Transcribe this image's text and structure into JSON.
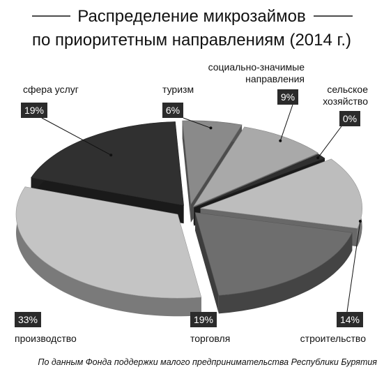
{
  "chart_data": {
    "type": "pie",
    "title_line1": "Распределение микрозаймов",
    "title_line2": "по приоритетным направлениям (2014 г.)",
    "source": "По данным Фонда поддержки малого предпринимательства Республики Бурятия",
    "slices": [
      {
        "label": "туризм",
        "value": 6,
        "value_label": "6%",
        "color": "#8a8a8a"
      },
      {
        "label": "социально-значимые направления",
        "label_lines": [
          "социально-значимые",
          "направления"
        ],
        "value": 9,
        "value_label": "9%",
        "color": "#a9a9a9"
      },
      {
        "label": "сельское хозяйство",
        "label_lines": [
          "сельское",
          "хозяйство"
        ],
        "value": 0,
        "value_label": "0%",
        "color": "#2f2f2f"
      },
      {
        "label": "строительство",
        "value": 14,
        "value_label": "14%",
        "color": "#bdbdbd"
      },
      {
        "label": "торговля",
        "value": 19,
        "value_label": "19%",
        "color": "#6e6e6e"
      },
      {
        "label": "производство",
        "value": 33,
        "value_label": "33%",
        "color": "#c4c4c4"
      },
      {
        "label": "сфера услуг",
        "value": 19,
        "value_label": "19%",
        "color": "#303030"
      }
    ]
  }
}
